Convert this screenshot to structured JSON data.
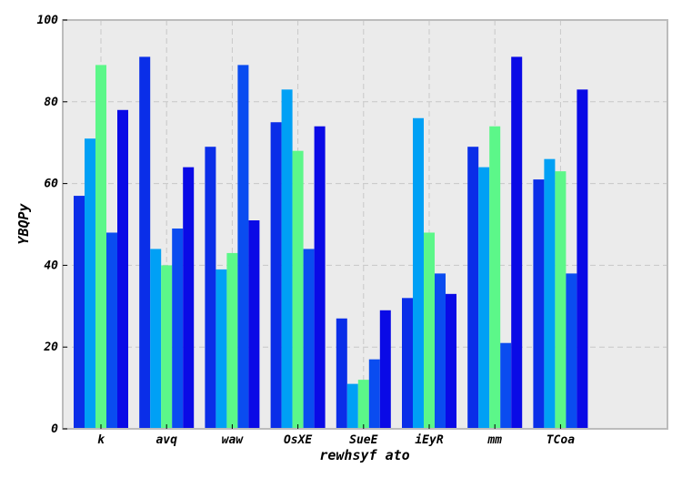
{
  "chart_data": {
    "type": "bar",
    "title": "",
    "xlabel": "rewhsyf ato",
    "ylabel": "YBQPy",
    "ylim": [
      0,
      100
    ],
    "yticks": [
      0,
      20,
      40,
      60,
      80,
      100
    ],
    "categories": [
      "k",
      "avq",
      "waw",
      "OsXE",
      "SueE",
      "iEyR",
      "mm",
      "TCoa"
    ],
    "grid": true,
    "legend": "none",
    "series": [
      {
        "color": "#0a2ee8",
        "values": [
          57,
          91,
          69,
          75,
          27,
          32,
          69,
          61
        ]
      },
      {
        "color": "#00a0f5",
        "values": [
          71,
          44,
          39,
          83,
          11,
          76,
          64,
          66
        ]
      },
      {
        "color": "#5cf789",
        "values": [
          89,
          40,
          43,
          68,
          12,
          48,
          74,
          63
        ]
      },
      {
        "color": "#0a4cf0",
        "values": [
          48,
          49,
          89,
          44,
          17,
          38,
          21,
          38
        ]
      },
      {
        "color": "#0a0ae6",
        "values": [
          78,
          64,
          51,
          74,
          29,
          33,
          91,
          83
        ]
      }
    ],
    "colors": {
      "plot_background": "#ebebeb",
      "frame": "#bcbcbc",
      "grid": "#c8c8c8"
    }
  }
}
